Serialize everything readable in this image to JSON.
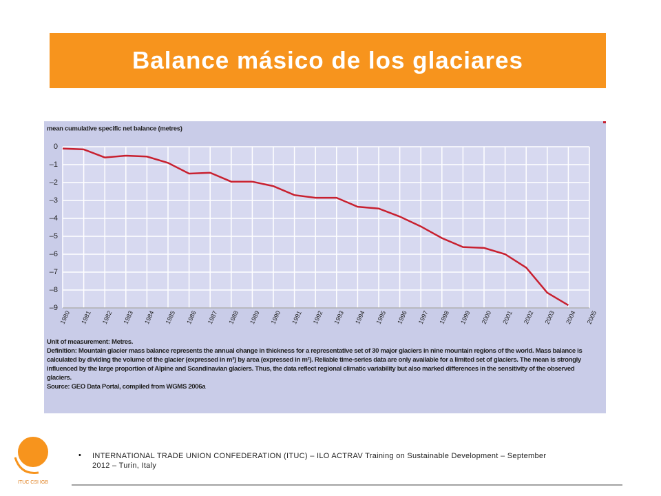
{
  "slide_title": "Balance másico de los glaciares",
  "chart_data": {
    "type": "line",
    "ylabel": "mean cumulative specific net balance (metres)",
    "x": [
      1980,
      1981,
      1982,
      1983,
      1984,
      1985,
      1986,
      1987,
      1988,
      1989,
      1990,
      1991,
      1992,
      1993,
      1994,
      1995,
      1996,
      1997,
      1998,
      1999,
      2000,
      2001,
      2002,
      2003,
      2004
    ],
    "values": [
      -0.1,
      -0.15,
      -0.6,
      -0.5,
      -0.55,
      -0.9,
      -1.5,
      -1.45,
      -1.95,
      -1.95,
      -2.2,
      -2.7,
      -2.85,
      -2.85,
      -3.35,
      -3.45,
      -3.9,
      -4.45,
      -5.1,
      -5.6,
      -5.65,
      -6.0,
      -6.75,
      -8.15,
      -8.85
    ],
    "color": "#c8202f",
    "xlim": [
      1980,
      2005
    ],
    "xticks": [
      1980,
      1981,
      1982,
      1983,
      1984,
      1985,
      1986,
      1987,
      1988,
      1989,
      1990,
      1991,
      1992,
      1993,
      1994,
      1995,
      1996,
      1997,
      1998,
      1999,
      2000,
      2001,
      2002,
      2003,
      2004,
      2005
    ],
    "ylim": [
      -9,
      0
    ],
    "yticks": [
      0,
      {
        "value": -1,
        "label": "–1"
      },
      {
        "value": -2,
        "label": "–2"
      },
      {
        "value": -3,
        "label": "–3"
      },
      {
        "value": -4,
        "label": "–4"
      },
      {
        "value": -5,
        "label": "–5"
      },
      {
        "value": -6,
        "label": "–6"
      },
      {
        "value": -7,
        "label": "–7"
      },
      {
        "value": -8,
        "label": "–8"
      },
      {
        "value": -9,
        "label": "–9"
      }
    ],
    "grid": true,
    "notes": [
      {
        "label": "Unit of measurement:",
        "text": "Metres."
      },
      {
        "label": "Definition: Mountain glacier mass balance",
        "text": "represents the annual change in thickness for a representative set of 30 major glaciers in nine mountain regions of the world. Mass balance is calculated by dividing the volume of the glacier (expressed in m³) by area (expressed in m²). Reliable time-series data are only available for a limited set of glaciers. The mean is strongly influenced by the large proportion of Alpine and Scandinavian glaciers. Thus, the data reflect regional climatic variability but also marked differences in the sensitivity of the observed glaciers."
      },
      {
        "label": "Source:",
        "text": "GEO Data Portal, compiled from WGMS 2006a"
      }
    ]
  },
  "footer": "INTERNATIONAL TRADE UNION CONFEDERATION (ITUC) – ILO ACTRAV Training on Sustainable Development – September 2012 – Turin, Italy",
  "logo_text": "ITUC CSI IGB"
}
